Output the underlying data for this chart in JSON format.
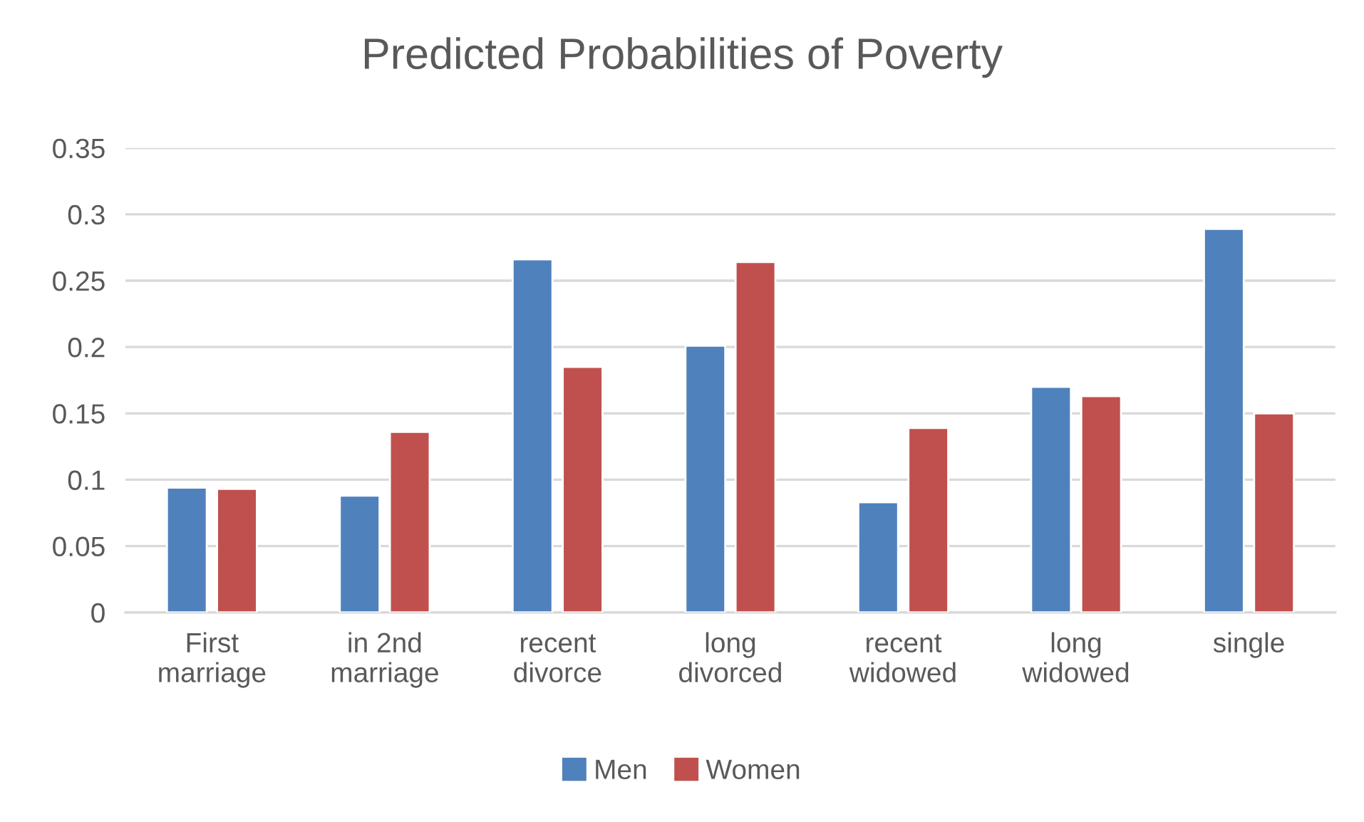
{
  "chart_data": {
    "type": "bar",
    "title": "Predicted Probabilities of Poverty",
    "categories": [
      "First\nmarriage",
      "in 2nd\nmarriage",
      "recent\ndivorce",
      "long\ndivorced",
      "recent\nwidowed",
      "long\nwidowed",
      "single"
    ],
    "series": [
      {
        "name": "Men",
        "color": "#4f81bd",
        "values": [
          0.094,
          0.088,
          0.266,
          0.201,
          0.083,
          0.17,
          0.289
        ]
      },
      {
        "name": "Women",
        "color": "#c0504d",
        "values": [
          0.093,
          0.136,
          0.185,
          0.264,
          0.139,
          0.163,
          0.15
        ]
      }
    ],
    "ylim": [
      0,
      0.35
    ],
    "yticks": [
      0,
      0.05,
      0.1,
      0.15,
      0.2,
      0.25,
      0.3,
      0.35
    ],
    "grid": "y",
    "legend": "bottom"
  }
}
